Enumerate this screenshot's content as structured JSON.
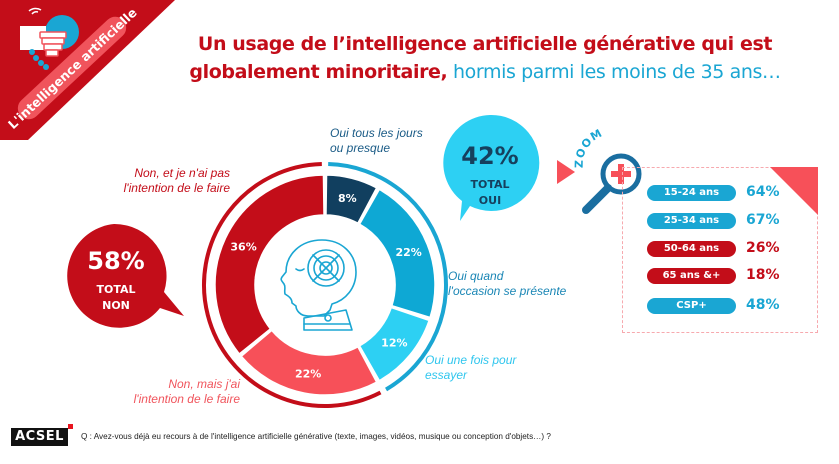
{
  "banner": {
    "label": "L'intelligence artificielle",
    "colors": {
      "background": "#c30d19",
      "pill": "#f0545c",
      "icon_accent": "#1aa6d3"
    }
  },
  "title": {
    "part1": "Un usage de l’intelligence artificielle générative qui est",
    "part2_bold": "globalement minoritaire,",
    "part2_light": " hormis parmi les moins de 35 ans…"
  },
  "bubbles": {
    "no": {
      "value": "58%",
      "line1": "TOTAL",
      "line2": "NON",
      "color": "#c30d19"
    },
    "yes": {
      "value": "42%",
      "line1": "TOTAL",
      "line2": "OUI",
      "color": "#2fd0f3"
    }
  },
  "zoom_panel": {
    "badge": "ZOOM",
    "rows": [
      {
        "label": "15-24 ans",
        "value": "64%",
        "color": "#1aa6d3"
      },
      {
        "label": "25-34 ans",
        "value": "67%",
        "color": "#1aa6d3"
      },
      {
        "label": "50-64 ans",
        "value": "26%",
        "color": "#c30d19"
      },
      {
        "label": "65 ans &+",
        "value": "18%",
        "color": "#c30d19"
      },
      {
        "label": "CSP+",
        "value": "48%",
        "color": "#1aa6d3"
      }
    ]
  },
  "footer": {
    "brand": "ACSEL",
    "question": "Q : Avez-vous déjà eu recours à de l'intelligence artificielle générative (texte, images, vidéos, musique ou conception d'objets…) ?"
  },
  "chart_data": {
    "type": "pie",
    "variant": "donut",
    "title": "Un usage de l’intelligence artificielle générative qui est globalement minoritaire, hormis parmi les moins de 35 ans…",
    "slices": [
      {
        "label": "Oui tous les jours ou presque",
        "label_lines": [
          "Oui tous les jours",
          "ou presque"
        ],
        "value": 8,
        "display": "8%",
        "color": "#113f5f",
        "group": "oui"
      },
      {
        "label": "Oui quand l'occasion se présente",
        "label_lines": [
          "Oui quand",
          "l'occasion se présente"
        ],
        "value": 22,
        "display": "22%",
        "color": "#0ea8d4",
        "group": "oui"
      },
      {
        "label": "Oui une fois pour essayer",
        "label_lines": [
          "Oui une fois pour",
          "essayer"
        ],
        "value": 12,
        "display": "12%",
        "color": "#2dd0f3",
        "group": "oui"
      },
      {
        "label": "Non, mais j'ai l'intention de le faire",
        "label_lines": [
          "Non, mais j'ai",
          "l'intention de le faire"
        ],
        "value": 22,
        "display": "22%",
        "color": "#f75059",
        "group": "non"
      },
      {
        "label": "Non, et je n'ai pas l'intention de le faire",
        "label_lines": [
          "Non, et je n'ai pas",
          "l'intention de le faire"
        ],
        "value": 36,
        "display": "36%",
        "color": "#c30d19",
        "group": "non"
      }
    ],
    "groups": [
      {
        "name": "TOTAL OUI",
        "value": 42,
        "color": "#1aa6d3"
      },
      {
        "name": "TOTAL NON",
        "value": 58,
        "color": "#c30d19"
      }
    ],
    "breakdown": {
      "metric": "Total Oui",
      "categories": [
        "15-24 ans",
        "25-34 ans",
        "50-64 ans",
        "65 ans &+",
        "CSP+"
      ],
      "values": [
        64,
        67,
        26,
        18,
        48
      ]
    }
  }
}
